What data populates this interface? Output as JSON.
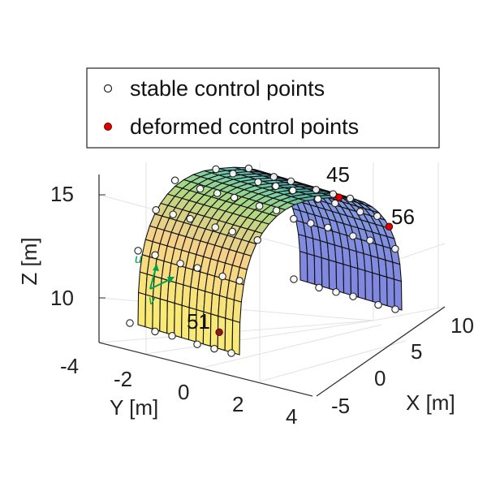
{
  "chart_data": {
    "type": "surface",
    "title": "",
    "xlabel": "X [m]",
    "ylabel": "Y [m]",
    "zlabel": "Z [m]",
    "x_ticks": [
      "-5",
      "0",
      "5",
      "10"
    ],
    "y_ticks": [
      "-4",
      "-2",
      "0",
      "2",
      "4"
    ],
    "z_ticks": [
      "10",
      "15"
    ],
    "xlim": [
      -5,
      10
    ],
    "ylim": [
      -4,
      4
    ],
    "zlim": [
      8,
      16
    ],
    "grid": true,
    "colormap": "parula",
    "legend": {
      "placement": "top",
      "entries": [
        {
          "label": "stable control points",
          "marker": "open-circle",
          "color": "#ffffff"
        },
        {
          "label": "deformed control points",
          "marker": "filled-circle",
          "color": "#e00000"
        }
      ]
    },
    "labeled_points": [
      {
        "label": "45",
        "color": "#e00000"
      },
      {
        "label": "56",
        "color": "#e00000"
      },
      {
        "label": "51",
        "color": "#8b1a1a"
      }
    ],
    "direction_labels": {
      "u": "u",
      "v": "v",
      "color": "#00a050"
    }
  }
}
